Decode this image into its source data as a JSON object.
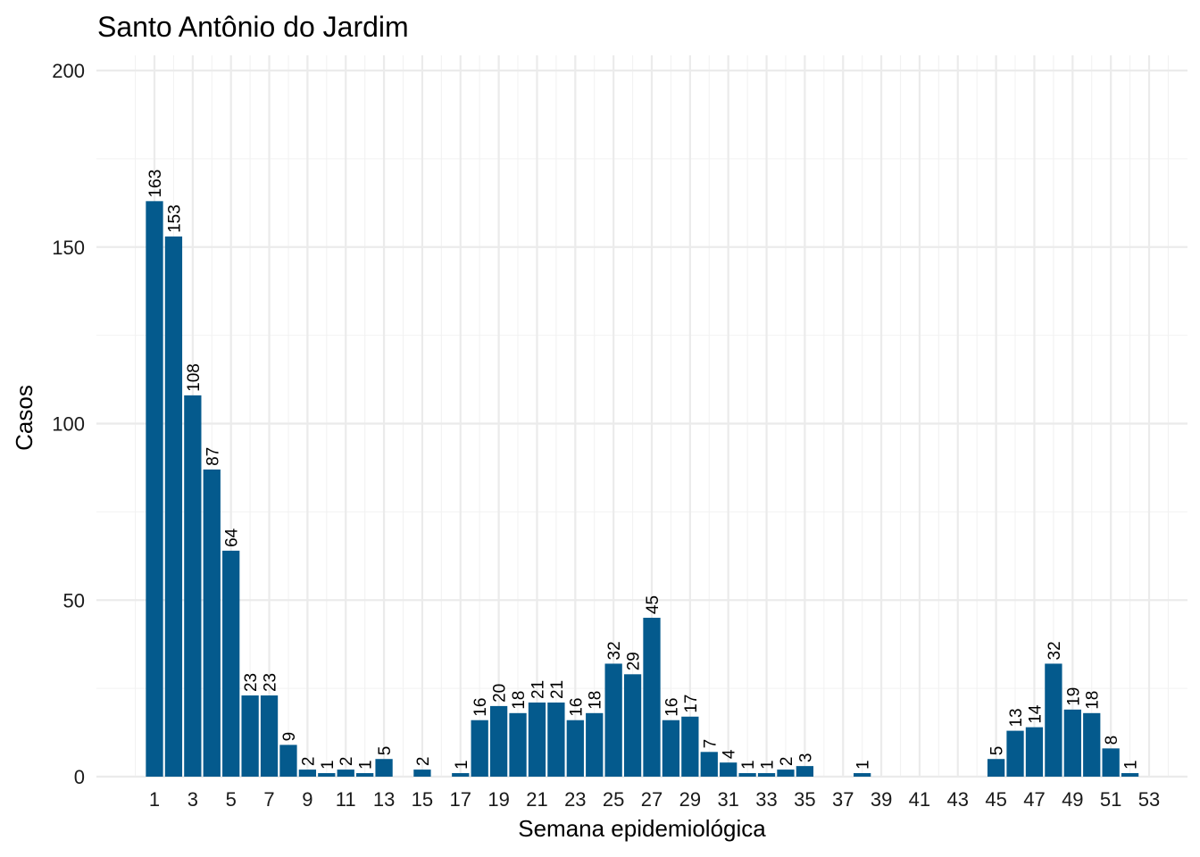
{
  "chart_data": {
    "type": "bar",
    "title": "Santo Antônio do Jardim",
    "xlabel": "Semana epidemiológica",
    "ylabel": "Casos",
    "bar_color": "#045a8d",
    "xlim": [
      0,
      54
    ],
    "ylim": [
      0,
      200
    ],
    "yticks": [
      0,
      50,
      100,
      150,
      200
    ],
    "xticks": [
      1,
      3,
      5,
      7,
      9,
      11,
      13,
      15,
      17,
      19,
      21,
      23,
      25,
      27,
      29,
      31,
      33,
      35,
      37,
      39,
      41,
      43,
      45,
      47,
      49,
      51,
      53
    ],
    "grid": true,
    "data_labels": true,
    "x": [
      1,
      2,
      3,
      4,
      5,
      6,
      7,
      8,
      9,
      10,
      11,
      12,
      13,
      15,
      17,
      18,
      19,
      20,
      21,
      22,
      23,
      24,
      25,
      26,
      27,
      28,
      29,
      30,
      31,
      32,
      33,
      34,
      35,
      38,
      45,
      46,
      47,
      48,
      49,
      50,
      51,
      52
    ],
    "values": [
      163,
      153,
      108,
      87,
      64,
      23,
      23,
      9,
      2,
      1,
      2,
      1,
      5,
      2,
      1,
      16,
      20,
      18,
      21,
      21,
      16,
      18,
      32,
      29,
      45,
      16,
      17,
      7,
      4,
      1,
      1,
      2,
      3,
      1,
      5,
      13,
      14,
      32,
      19,
      18,
      8,
      1
    ]
  }
}
